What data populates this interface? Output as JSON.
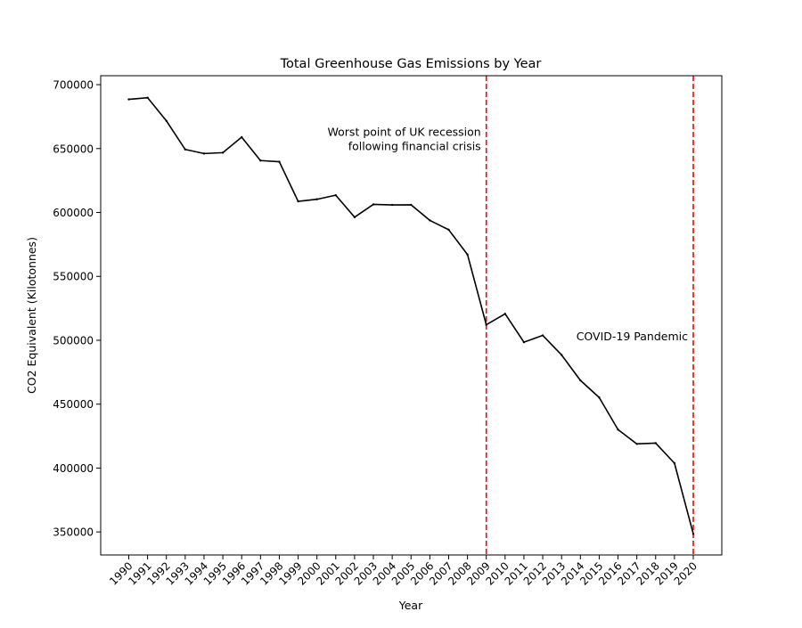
{
  "chart_data": {
    "type": "line",
    "title": "Total Greenhouse Gas Emissions by Year",
    "xlabel": "Year",
    "ylabel": "CO2 Equivalent (Kilotonnes)",
    "x": [
      "1990",
      "1991",
      "1992",
      "1993",
      "1994",
      "1995",
      "1996",
      "1997",
      "1998",
      "1999",
      "2000",
      "2001",
      "2002",
      "2003",
      "2004",
      "2005",
      "2006",
      "2007",
      "2008",
      "2009",
      "2010",
      "2011",
      "2012",
      "2013",
      "2014",
      "2015",
      "2016",
      "2017",
      "2018",
      "2019",
      "2020"
    ],
    "series": [
      {
        "name": "",
        "color": "#000000",
        "values": [
          688500,
          689800,
          671700,
          649300,
          646100,
          646800,
          658900,
          640600,
          639700,
          608700,
          610300,
          613500,
          596300,
          606300,
          605900,
          606000,
          593800,
          586500,
          567100,
          512100,
          520700,
          498500,
          503800,
          488500,
          468600,
          455200,
          430100,
          418900,
          419500,
          403800,
          348500
        ]
      }
    ],
    "yticks": [
      "350000",
      "400000",
      "450000",
      "500000",
      "550000",
      "600000",
      "650000",
      "700000"
    ],
    "ylim": [
      332000,
      707000
    ],
    "grid": false,
    "legend": "none",
    "vlines": [
      {
        "year": "2009",
        "color": "#ff0000",
        "style": "dashed"
      },
      {
        "year": "2020",
        "color": "#ff0000",
        "style": "dashed"
      }
    ],
    "annotations": [
      {
        "lines": [
          "Worst point of UK recession",
          "following financial crisis"
        ]
      },
      {
        "lines": [
          "COVID-19 Pandemic"
        ]
      }
    ]
  }
}
